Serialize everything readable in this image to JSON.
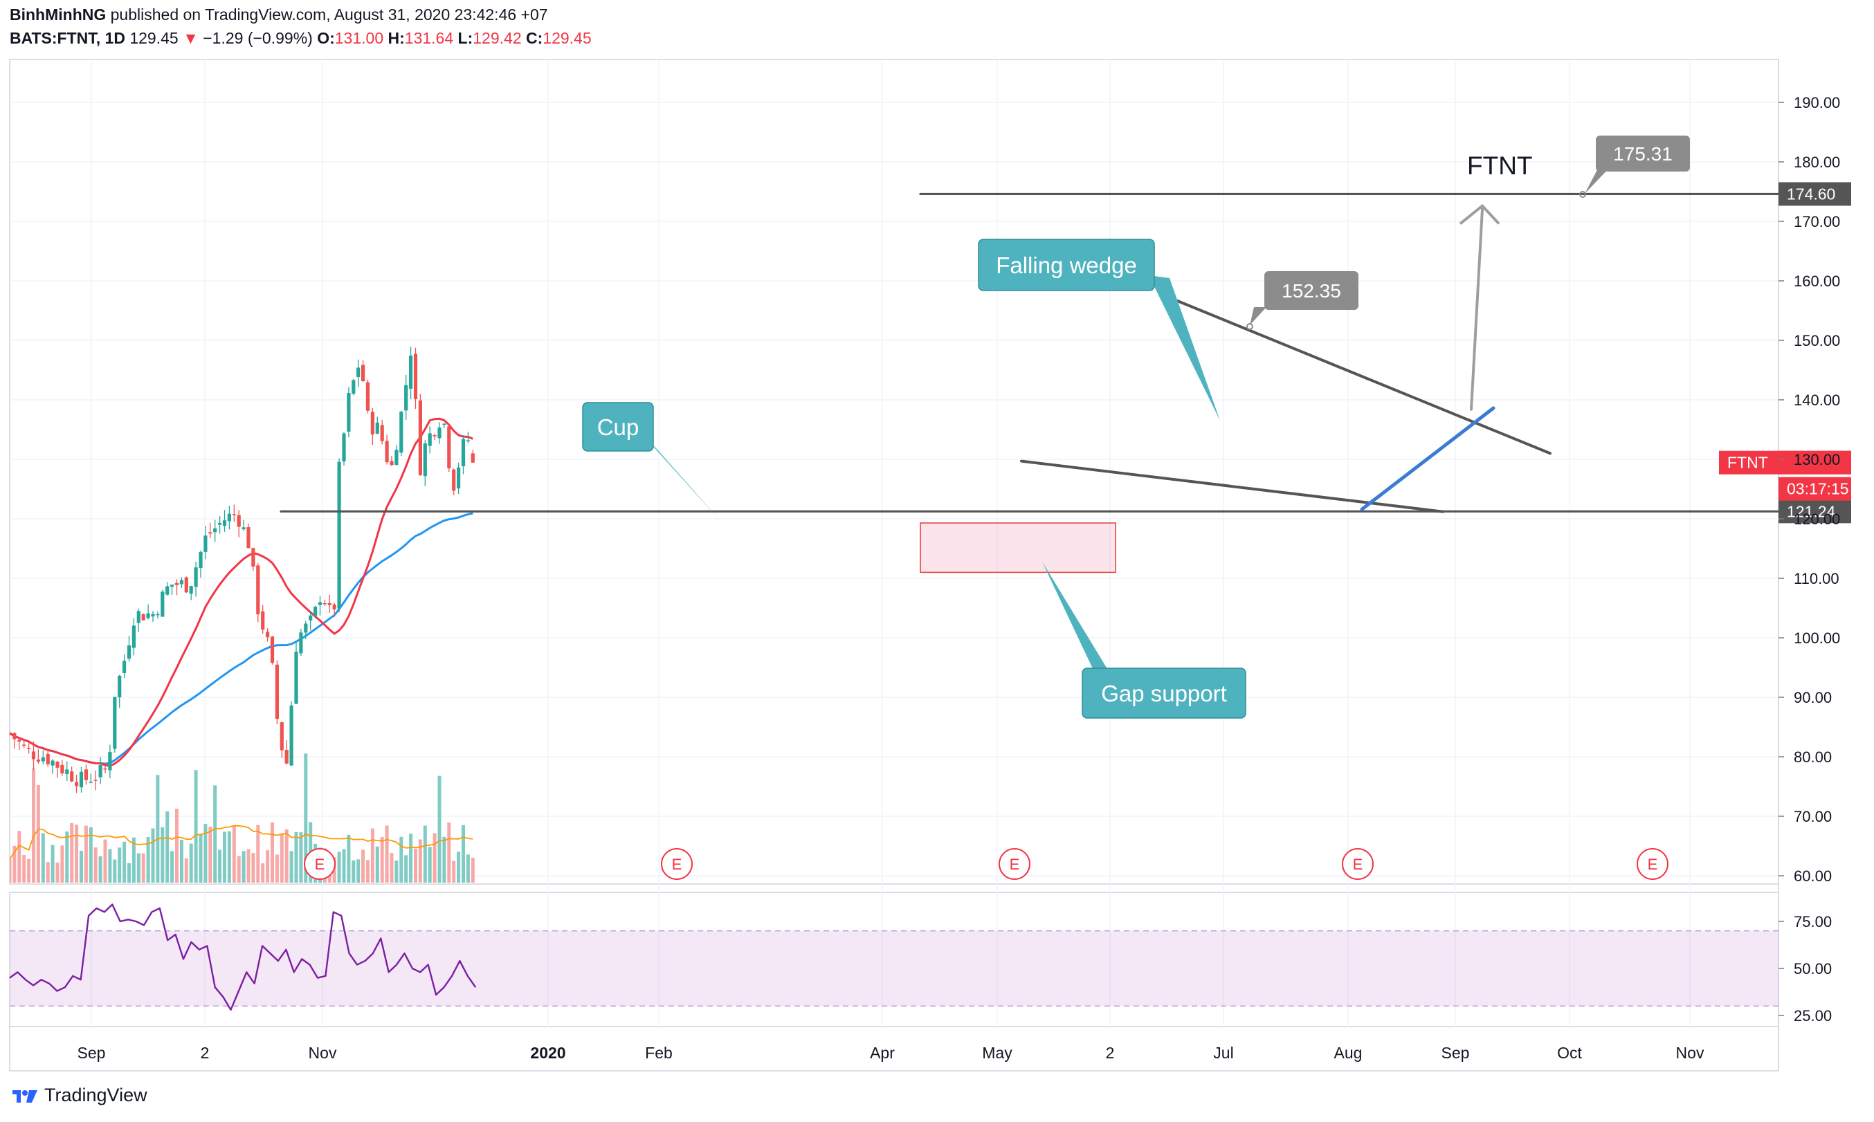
{
  "header": {
    "line1": {
      "author": "BinhMinhNG",
      "rest": " published on TradingView.com, August 31, 2020 23:42:46 +07"
    },
    "line2": {
      "symbol": "BATS:FTNT, 1D",
      "last": " 129.45 ",
      "change_arrow": "▼",
      "change": " −1.29 (−0.99%) ",
      "o_label": "O:",
      "o_value": "131.00 ",
      "h_label": "H:",
      "h_value": "131.64 ",
      "l_label": "L:",
      "l_value": "129.42 ",
      "c_label": "C:",
      "c_value": "129.45"
    }
  },
  "footer": {
    "brand": "TradingView"
  },
  "colors": {
    "up": "#26a69a",
    "down": "#ef5350",
    "ma_fast": "#f23645",
    "ma_slow": "#2196f3",
    "vol_ma": "#ff9800",
    "rsi": "#7b1fa2",
    "rsi_band": "#e1bee7",
    "line": "#555555",
    "accent_teal": "#4fb3bf",
    "trendline_blue": "#3a7bd5"
  },
  "chart_data": [
    {
      "type": "candlestick",
      "symbol": "FTNT",
      "interval": "1D",
      "ylim": [
        58,
        196
      ],
      "y_ticks": [
        "190.00",
        "180.00",
        "170.00",
        "160.00",
        "150.00",
        "140.00",
        "130.00",
        "120.00",
        "110.00",
        "100.00",
        "90.00",
        "80.00",
        "70.00",
        "60.00"
      ],
      "x_tick_labels": [
        "Sep",
        "2",
        "Nov",
        "2020",
        "Feb",
        "Apr",
        "May",
        "2",
        "Jul",
        "Aug",
        "Sep",
        "Oct",
        "Nov"
      ],
      "close_path": [
        [
          "2019-08-01",
          84
        ],
        [
          "2019-08-15",
          81
        ],
        [
          "2019-09-01",
          80
        ],
        [
          "2019-09-15",
          78
        ],
        [
          "2019-10-01",
          76
        ],
        [
          "2019-10-15",
          77
        ],
        [
          "2019-10-24",
          78
        ],
        [
          "2019-10-28",
          90
        ],
        [
          "2019-11-05",
          95
        ],
        [
          "2019-11-15",
          104
        ],
        [
          "2019-12-01",
          104
        ],
        [
          "2019-12-15",
          109
        ],
        [
          "2020-01-01",
          109
        ],
        [
          "2020-01-15",
          117
        ],
        [
          "2020-01-31",
          120
        ],
        [
          "2020-02-10",
          121
        ],
        [
          "2020-02-20",
          116
        ],
        [
          "2020-02-28",
          105
        ],
        [
          "2020-03-10",
          97
        ],
        [
          "2020-03-16",
          85
        ],
        [
          "2020-03-23",
          78
        ],
        [
          "2020-04-01",
          100
        ],
        [
          "2020-04-15",
          103
        ],
        [
          "2020-04-22",
          108
        ],
        [
          "2020-05-01",
          103
        ],
        [
          "2020-05-05",
          108
        ],
        [
          "2020-05-07",
          128
        ],
        [
          "2020-05-15",
          140
        ],
        [
          "2020-05-25",
          147
        ],
        [
          "2020-06-01",
          136
        ],
        [
          "2020-06-10",
          135
        ],
        [
          "2020-06-20",
          128
        ],
        [
          "2020-07-01",
          140
        ],
        [
          "2020-07-08",
          150
        ],
        [
          "2020-07-14",
          128
        ],
        [
          "2020-07-20",
          133
        ],
        [
          "2020-08-01",
          137
        ],
        [
          "2020-08-07",
          135
        ],
        [
          "2020-08-10",
          124
        ],
        [
          "2020-08-20",
          132
        ],
        [
          "2020-08-27",
          134
        ],
        [
          "2020-08-31",
          129.45
        ]
      ],
      "last_price": "129.45",
      "symbol_tag": "FTNT",
      "countdown": "03:17:15",
      "price_labels": [
        "174.60",
        "121.24"
      ],
      "annotations": {
        "title_text": "FTNT",
        "callouts": [
          "Cup",
          "Falling wedge",
          "Gap support",
          "152.35",
          "175.31"
        ]
      },
      "earnings_markers": [
        "E",
        "E",
        "E",
        "E",
        "E"
      ],
      "indicators": [
        "moving average (red)",
        "moving average (blue)",
        "volume",
        "volume moving average"
      ]
    },
    {
      "type": "line",
      "name": "RSI",
      "ylim": [
        20,
        85
      ],
      "y_ticks": [
        "75.00",
        "50.00",
        "25.00"
      ],
      "band": [
        30,
        70
      ],
      "values": [
        45,
        48,
        44,
        41,
        44,
        42,
        38,
        40,
        46,
        44,
        78,
        82,
        80,
        84,
        75,
        76,
        75,
        73,
        80,
        82,
        65,
        68,
        55,
        64,
        60,
        62,
        40,
        35,
        28,
        38,
        48,
        42,
        62,
        58,
        54,
        60,
        48,
        55,
        52,
        45,
        46,
        80,
        78,
        58,
        52,
        54,
        58,
        66,
        48,
        52,
        58,
        50,
        48,
        52,
        36,
        40,
        46,
        54,
        46,
        40
      ]
    }
  ]
}
